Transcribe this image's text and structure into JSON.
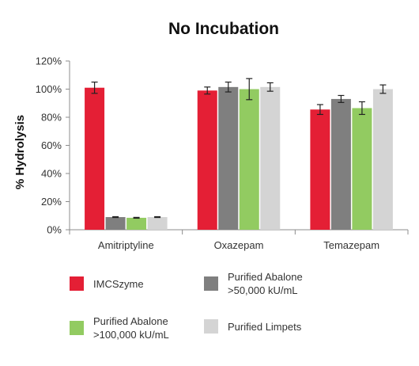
{
  "chart_data": {
    "type": "bar",
    "title": "No Incubation",
    "xlabel": "",
    "ylabel": "% Hydrolysis",
    "ylim": [
      0,
      1.2
    ],
    "yticks": [
      0,
      0.2,
      0.4,
      0.6,
      0.8,
      1.0,
      1.2
    ],
    "ytick_labels": [
      "0%",
      "20%",
      "40%",
      "60%",
      "80%",
      "100%",
      "120%"
    ],
    "categories": [
      "Amitriptyline",
      "Oxazepam",
      "Temazepam"
    ],
    "grid": false,
    "legend_position": "bottom",
    "series": [
      {
        "name": "IMCSzyme",
        "color": "#e41f35",
        "values": [
          1.01,
          0.99,
          0.855
        ],
        "errors": [
          0.04,
          0.025,
          0.035
        ]
      },
      {
        "name": "Purified Abalone\n>50,000 kU/mL",
        "color": "#7f7f7f",
        "values": [
          0.09,
          1.015,
          0.93
        ],
        "errors": [
          0.003,
          0.035,
          0.025
        ]
      },
      {
        "name": "Purified Abalone\n>100,000 kU/mL",
        "color": "#92cb61",
        "values": [
          0.085,
          1.0,
          0.865
        ],
        "errors": [
          0.003,
          0.075,
          0.045
        ]
      },
      {
        "name": "Purified Limpets",
        "color": "#d4d4d4",
        "values": [
          0.09,
          1.015,
          1.0
        ],
        "errors": [
          0.003,
          0.03,
          0.03
        ]
      }
    ]
  }
}
